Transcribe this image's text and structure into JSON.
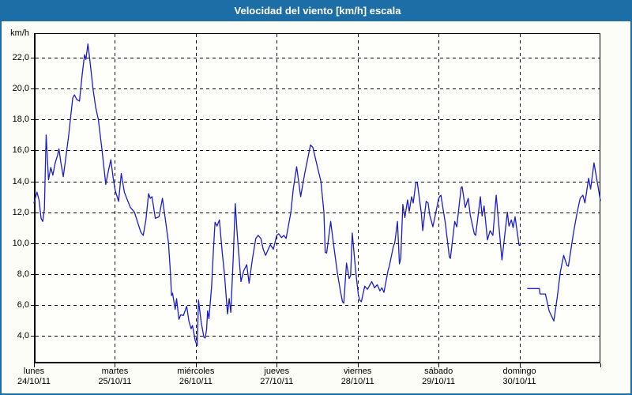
{
  "header": {
    "title": "Velocidad del viento [km/h] escala"
  },
  "chart_data": {
    "type": "line",
    "title": "Velocidad del viento [km/h] escala",
    "unit": "km/h",
    "grid": "dashed",
    "legend": "none",
    "series_name": "velocidad del viento",
    "series_color": "#1b1bd0",
    "y_axis": {
      "top_value": 23.6,
      "bottom_value": 2.2,
      "gridline_values": [
        4,
        6,
        8,
        10,
        12,
        14,
        16,
        18,
        20,
        22
      ],
      "tick_labels": [
        "4,0",
        "6,0",
        "8,0",
        "10,0",
        "12,0",
        "14,0",
        "16,0",
        "18,0",
        "20,0",
        "22,0"
      ]
    },
    "x_axis": {
      "total_hours": 168,
      "day_tick_hours": [
        0,
        24,
        48,
        72,
        96,
        120,
        144,
        168
      ],
      "categories": [
        {
          "day": "lunes",
          "date": "24/10/11"
        },
        {
          "day": "martes",
          "date": "25/10/11"
        },
        {
          "day": "miércoles",
          "date": "26/10/11"
        },
        {
          "day": "jueves",
          "date": "27/10/11"
        },
        {
          "day": "viernes",
          "date": "28/10/11"
        },
        {
          "day": "sábado",
          "date": "29/10/11"
        },
        {
          "day": "domingo",
          "date": "30/10/11"
        }
      ]
    },
    "segments": [
      [
        [
          0,
          12.6
        ],
        [
          0.9,
          13.3
        ],
        [
          1.5,
          12.8
        ],
        [
          2.1,
          11.6
        ],
        [
          2.6,
          11.4
        ],
        [
          3.1,
          12.2
        ],
        [
          3.6,
          17.0
        ],
        [
          4.3,
          14.1
        ],
        [
          5,
          14.9
        ],
        [
          5.6,
          14.4
        ],
        [
          6.3,
          15.2
        ],
        [
          7,
          15.7
        ],
        [
          7.4,
          16.1
        ],
        [
          8,
          15.2
        ],
        [
          8.7,
          14.3
        ],
        [
          9.5,
          15.6
        ],
        [
          10.3,
          17.0
        ],
        [
          11,
          18.4
        ],
        [
          11.5,
          19.4
        ],
        [
          12,
          19.6
        ],
        [
          12.7,
          19.3
        ],
        [
          13.5,
          19.2
        ],
        [
          14.3,
          20.9
        ],
        [
          15,
          22.2
        ],
        [
          15.4,
          21.9
        ],
        [
          16,
          22.9
        ],
        [
          16.7,
          21.6
        ],
        [
          17.5,
          20.0
        ],
        [
          18.3,
          18.8
        ],
        [
          19.1,
          18.0
        ],
        [
          20.2,
          16.0
        ],
        [
          21.3,
          13.8
        ],
        [
          22.1,
          14.7
        ],
        [
          22.8,
          15.4
        ],
        [
          23.5,
          14.2
        ],
        [
          24.1,
          13.4
        ],
        [
          25.1,
          12.7
        ],
        [
          25.9,
          14.5
        ],
        [
          26.8,
          13.3
        ],
        [
          27.5,
          12.9
        ],
        [
          28.6,
          12.3
        ],
        [
          29.8,
          12.0
        ],
        [
          30.8,
          11.3
        ],
        [
          31.7,
          10.7
        ],
        [
          32.4,
          10.5
        ],
        [
          33.2,
          11.5
        ],
        [
          34,
          13.2
        ],
        [
          34.5,
          12.9
        ],
        [
          35,
          13.0
        ],
        [
          36,
          11.6
        ],
        [
          37.1,
          11.7
        ],
        [
          38.1,
          12.9
        ],
        [
          39,
          11.5
        ],
        [
          39.9,
          10.0
        ],
        [
          40.5,
          8.0
        ],
        [
          40.8,
          6.6
        ],
        [
          41.1,
          6.75
        ],
        [
          41.9,
          5.7
        ],
        [
          42.3,
          6.4
        ],
        [
          43,
          5.05
        ],
        [
          43.5,
          5.35
        ],
        [
          44.3,
          5.3
        ],
        [
          45.3,
          5.9
        ],
        [
          46,
          4.9
        ],
        [
          46.6,
          4.45
        ],
        [
          47,
          4.65
        ],
        [
          47.4,
          4.2
        ],
        [
          47.8,
          3.7
        ],
        [
          48.1,
          3.5
        ],
        [
          48.4,
          3.35
        ],
        [
          48.8,
          6.3
        ],
        [
          49.6,
          4.85
        ],
        [
          50.4,
          3.9
        ],
        [
          50.8,
          3.85
        ],
        [
          51.2,
          4.4
        ],
        [
          51.5,
          5.6
        ],
        [
          51.9,
          5.1
        ],
        [
          52.7,
          7.2
        ],
        [
          53.2,
          9.5
        ],
        [
          53.7,
          11.35
        ],
        [
          54.3,
          11.1
        ],
        [
          55,
          11.5
        ],
        [
          55.8,
          9.5
        ],
        [
          56.5,
          8.0
        ],
        [
          57.4,
          5.4
        ],
        [
          57.9,
          6.4
        ],
        [
          58.4,
          5.5
        ],
        [
          59.1,
          9.0
        ],
        [
          59.7,
          12.55
        ],
        [
          60.3,
          10.5
        ],
        [
          61.4,
          7.5
        ],
        [
          62.2,
          8.2
        ],
        [
          63.1,
          8.6
        ],
        [
          63.8,
          7.4
        ],
        [
          64.8,
          9.0
        ],
        [
          65.8,
          10.3
        ],
        [
          66.5,
          10.5
        ],
        [
          67.3,
          10.3
        ],
        [
          68,
          9.6
        ],
        [
          68.7,
          9.2
        ],
        [
          70.1,
          9.9
        ],
        [
          71,
          9.6
        ],
        [
          72,
          10.5
        ],
        [
          72.6,
          10.6
        ],
        [
          73.4,
          10.35
        ],
        [
          74.1,
          10.5
        ],
        [
          74.8,
          10.3
        ],
        [
          76.2,
          12.0
        ],
        [
          76.9,
          13.5
        ],
        [
          77.9,
          14.95
        ],
        [
          79.1,
          13.0
        ],
        [
          80.3,
          14.5
        ],
        [
          82,
          16.35
        ],
        [
          82.7,
          16.2
        ],
        [
          84,
          15.0
        ],
        [
          85.1,
          14.0
        ],
        [
          86,
          12.0
        ],
        [
          86.4,
          9.4
        ],
        [
          86.8,
          9.35
        ],
        [
          88,
          11.4
        ],
        [
          88.8,
          10.0
        ],
        [
          90,
          8.05
        ],
        [
          90.8,
          7.0
        ],
        [
          91.5,
          6.2
        ],
        [
          91.9,
          6.1
        ],
        [
          92.7,
          8.7
        ],
        [
          93.5,
          7.7
        ],
        [
          93.9,
          7.9
        ],
        [
          94.4,
          10.65
        ],
        [
          95.4,
          8.2
        ],
        [
          96.2,
          6.65
        ],
        [
          96.6,
          6.3
        ],
        [
          97.1,
          6.2
        ],
        [
          98.1,
          7.2
        ],
        [
          98.9,
          7.0
        ],
        [
          100.2,
          7.5
        ],
        [
          101,
          7.1
        ],
        [
          101.8,
          7.3
        ],
        [
          102.6,
          6.9
        ],
        [
          103.2,
          7.1
        ],
        [
          103.8,
          6.8
        ],
        [
          105,
          8.2
        ],
        [
          105.4,
          8.5
        ],
        [
          106.6,
          9.8
        ],
        [
          107,
          10.0
        ],
        [
          107.8,
          11.4
        ],
        [
          108.4,
          8.65
        ],
        [
          108.8,
          9.0
        ],
        [
          109.4,
          12.5
        ],
        [
          110,
          11.65
        ],
        [
          110.8,
          12.8
        ],
        [
          111.3,
          12.05
        ],
        [
          112,
          13.0
        ],
        [
          112.5,
          12.6
        ],
        [
          113.3,
          13.95
        ],
        [
          113.7,
          13.9
        ],
        [
          114.9,
          11.9
        ],
        [
          115.3,
          10.8
        ],
        [
          116.3,
          12.7
        ],
        [
          116.9,
          12.6
        ],
        [
          117.4,
          11.8
        ],
        [
          117.9,
          11.4
        ],
        [
          118.3,
          11.05
        ],
        [
          119.6,
          12.4
        ],
        [
          120,
          12.85
        ],
        [
          120.3,
          13.0
        ],
        [
          120.7,
          13.1
        ],
        [
          122,
          11.3
        ],
        [
          123.2,
          9.1
        ],
        [
          123.5,
          9.0
        ],
        [
          124.8,
          11.4
        ],
        [
          125.4,
          11.05
        ],
        [
          126.7,
          13.6
        ],
        [
          127,
          13.65
        ],
        [
          127.9,
          12.3
        ],
        [
          128.8,
          12.9
        ],
        [
          129.4,
          11.8
        ],
        [
          130.6,
          10.6
        ],
        [
          131,
          10.5
        ],
        [
          132.4,
          13.0
        ],
        [
          132.9,
          11.75
        ],
        [
          133.5,
          12.4
        ],
        [
          134.5,
          10.2
        ],
        [
          135.3,
          10.8
        ],
        [
          136.1,
          10.5
        ],
        [
          137.1,
          13.1
        ],
        [
          138.4,
          9.85
        ],
        [
          138.8,
          8.9
        ],
        [
          140.4,
          12.0
        ],
        [
          140.9,
          11.1
        ],
        [
          141.6,
          11.5
        ],
        [
          142.1,
          11.0
        ],
        [
          142.7,
          11.7
        ],
        [
          143.9,
          9.85
        ],
        [
          144.3,
          9.9
        ]
      ],
      [
        [
          146.4,
          7.05
        ],
        [
          149.9,
          7.05
        ],
        [
          150.1,
          6.7
        ],
        [
          151.7,
          6.7
        ],
        [
          152.8,
          5.6
        ],
        [
          154.2,
          4.95
        ],
        [
          155.2,
          6.5
        ],
        [
          156.1,
          8.1
        ],
        [
          157.1,
          9.2
        ],
        [
          158.1,
          8.55
        ],
        [
          158.5,
          8.5
        ],
        [
          160,
          10.65
        ],
        [
          161.1,
          12.0
        ],
        [
          162,
          12.9
        ],
        [
          162.4,
          13.0
        ],
        [
          162.8,
          13.1
        ],
        [
          163.4,
          12.6
        ],
        [
          164.5,
          14.2
        ],
        [
          165.1,
          13.5
        ],
        [
          166.1,
          15.2
        ],
        [
          167.1,
          13.9
        ],
        [
          168,
          12.75
        ]
      ]
    ]
  },
  "colors": {
    "titlebar_bg": "#1d6ea6",
    "window_border": "#1d6ea6",
    "content_bg": "#fbfdf6",
    "plot_bg": "#fefffb",
    "grid": "#000000",
    "line": "#1b1bd0",
    "text": "#000000",
    "title_text": "#ffffff"
  }
}
